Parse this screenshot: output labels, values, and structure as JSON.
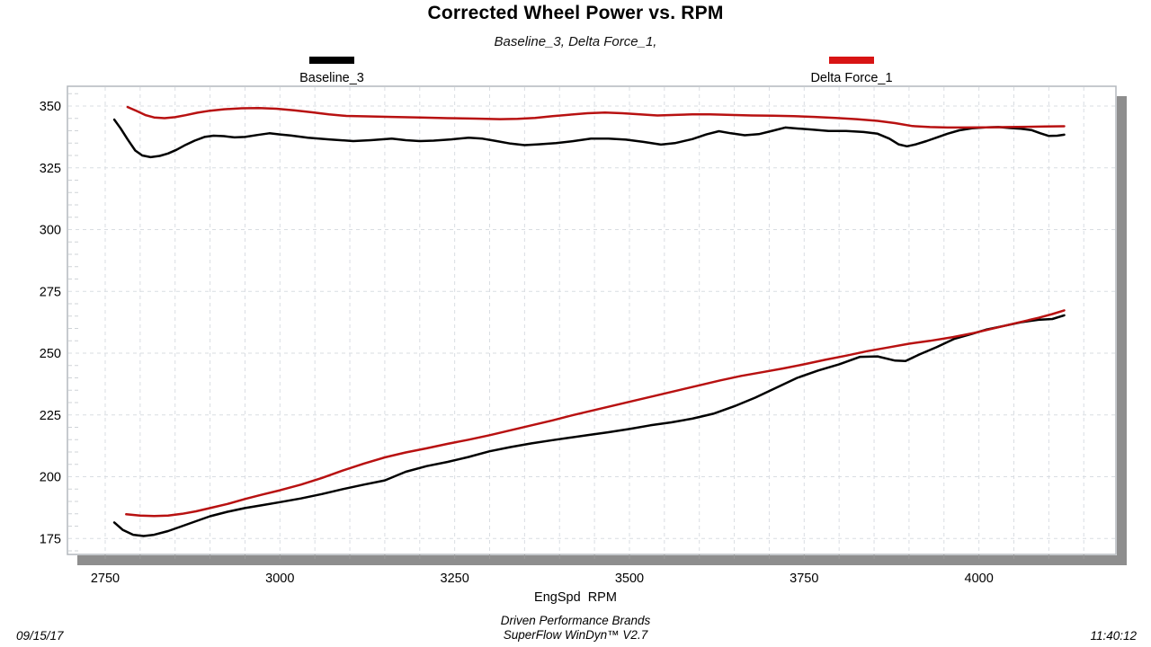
{
  "chart_data": {
    "type": "line",
    "title": "Corrected Wheel Power vs. RPM",
    "subtitle": "Baseline_3, Delta Force_1,",
    "xlabel": "EngSpd  RPM",
    "x_range": [
      2696,
      4196
    ],
    "x_ticks": [
      2750,
      3000,
      3250,
      3500,
      3750,
      4000
    ],
    "x_minor_step": 50,
    "y_range": [
      168,
      358
    ],
    "y_ticks": [
      175,
      200,
      225,
      250,
      275,
      300,
      325,
      350
    ],
    "y_minor_step": 5,
    "grid": true,
    "legend_position": "top",
    "legend": [
      {
        "label": "Baseline_3",
        "color": "#000000"
      },
      {
        "label": "Delta Force_1",
        "color": "#d81414"
      }
    ],
    "colors": {
      "baseline_3": "#000000",
      "delta_force_1": "#b81111",
      "grid": "#d9dde2",
      "frame": "#b4b9bd",
      "shadow": "#8e8e8e"
    },
    "series": [
      {
        "name": "Baseline_3 (upper curve)",
        "run": "Baseline_3",
        "color": "#000000",
        "points": [
          [
            2763,
            344.5
          ],
          [
            2772,
            341.0
          ],
          [
            2782,
            336.5
          ],
          [
            2793,
            332.0
          ],
          [
            2803,
            330.0
          ],
          [
            2815,
            329.3
          ],
          [
            2828,
            329.8
          ],
          [
            2840,
            330.8
          ],
          [
            2852,
            332.3
          ],
          [
            2865,
            334.3
          ],
          [
            2878,
            336.0
          ],
          [
            2892,
            337.5
          ],
          [
            2905,
            338.0
          ],
          [
            2920,
            337.8
          ],
          [
            2935,
            337.3
          ],
          [
            2950,
            337.5
          ],
          [
            2968,
            338.3
          ],
          [
            2985,
            339.0
          ],
          [
            3000,
            338.5
          ],
          [
            3015,
            338.1
          ],
          [
            3040,
            337.2
          ],
          [
            3070,
            336.5
          ],
          [
            3105,
            335.8
          ],
          [
            3130,
            336.2
          ],
          [
            3160,
            336.8
          ],
          [
            3180,
            336.2
          ],
          [
            3200,
            335.8
          ],
          [
            3220,
            336.0
          ],
          [
            3245,
            336.5
          ],
          [
            3270,
            337.2
          ],
          [
            3290,
            336.8
          ],
          [
            3310,
            335.8
          ],
          [
            3330,
            334.8
          ],
          [
            3350,
            334.2
          ],
          [
            3370,
            334.5
          ],
          [
            3395,
            335.0
          ],
          [
            3420,
            335.8
          ],
          [
            3445,
            336.8
          ],
          [
            3470,
            336.8
          ],
          [
            3495,
            336.4
          ],
          [
            3520,
            335.5
          ],
          [
            3545,
            334.4
          ],
          [
            3565,
            335.0
          ],
          [
            3590,
            336.6
          ],
          [
            3610,
            338.5
          ],
          [
            3628,
            339.8
          ],
          [
            3645,
            339.0
          ],
          [
            3665,
            338.2
          ],
          [
            3685,
            338.6
          ],
          [
            3705,
            340.0
          ],
          [
            3723,
            341.3
          ],
          [
            3740,
            340.9
          ],
          [
            3760,
            340.5
          ],
          [
            3785,
            339.9
          ],
          [
            3810,
            339.9
          ],
          [
            3835,
            339.5
          ],
          [
            3855,
            338.8
          ],
          [
            3872,
            336.8
          ],
          [
            3885,
            334.5
          ],
          [
            3897,
            333.7
          ],
          [
            3910,
            334.5
          ],
          [
            3925,
            335.8
          ],
          [
            3940,
            337.3
          ],
          [
            3955,
            338.8
          ],
          [
            3972,
            340.2
          ],
          [
            3990,
            341.0
          ],
          [
            4010,
            341.4
          ],
          [
            4028,
            341.5
          ],
          [
            4045,
            341.1
          ],
          [
            4060,
            340.8
          ],
          [
            4075,
            340.3
          ],
          [
            4088,
            339.0
          ],
          [
            4100,
            337.9
          ],
          [
            4112,
            338.0
          ],
          [
            4122,
            338.4
          ]
        ]
      },
      {
        "name": "Delta Force_1 (upper curve)",
        "run": "Delta Force_1",
        "color": "#b81111",
        "points": [
          [
            2782,
            349.6
          ],
          [
            2795,
            348.0
          ],
          [
            2808,
            346.3
          ],
          [
            2820,
            345.4
          ],
          [
            2835,
            345.1
          ],
          [
            2850,
            345.5
          ],
          [
            2865,
            346.3
          ],
          [
            2882,
            347.3
          ],
          [
            2900,
            348.1
          ],
          [
            2920,
            348.7
          ],
          [
            2945,
            349.1
          ],
          [
            2970,
            349.2
          ],
          [
            2995,
            348.9
          ],
          [
            3020,
            348.3
          ],
          [
            3045,
            347.5
          ],
          [
            3070,
            346.6
          ],
          [
            3095,
            346.0
          ],
          [
            3125,
            345.8
          ],
          [
            3160,
            345.6
          ],
          [
            3200,
            345.4
          ],
          [
            3240,
            345.1
          ],
          [
            3280,
            344.9
          ],
          [
            3315,
            344.7
          ],
          [
            3340,
            344.8
          ],
          [
            3365,
            345.2
          ],
          [
            3390,
            345.9
          ],
          [
            3415,
            346.5
          ],
          [
            3440,
            347.1
          ],
          [
            3465,
            347.4
          ],
          [
            3490,
            347.1
          ],
          [
            3515,
            346.6
          ],
          [
            3540,
            346.2
          ],
          [
            3565,
            346.4
          ],
          [
            3590,
            346.6
          ],
          [
            3615,
            346.6
          ],
          [
            3645,
            346.4
          ],
          [
            3675,
            346.2
          ],
          [
            3705,
            346.1
          ],
          [
            3735,
            345.9
          ],
          [
            3765,
            345.6
          ],
          [
            3795,
            345.2
          ],
          [
            3825,
            344.7
          ],
          [
            3855,
            344.0
          ],
          [
            3880,
            343.1
          ],
          [
            3905,
            341.9
          ],
          [
            3930,
            341.5
          ],
          [
            3955,
            341.3
          ],
          [
            3980,
            341.3
          ],
          [
            4010,
            341.4
          ],
          [
            4040,
            341.5
          ],
          [
            4070,
            341.6
          ],
          [
            4095,
            341.7
          ],
          [
            4122,
            341.8
          ]
        ]
      },
      {
        "name": "Baseline_3 (lower curve)",
        "run": "Baseline_3",
        "color": "#000000",
        "points": [
          [
            2763,
            181.5
          ],
          [
            2775,
            178.5
          ],
          [
            2790,
            176.5
          ],
          [
            2805,
            176.0
          ],
          [
            2820,
            176.5
          ],
          [
            2840,
            178.0
          ],
          [
            2860,
            180.0
          ],
          [
            2880,
            182.0
          ],
          [
            2900,
            184.0
          ],
          [
            2925,
            185.8
          ],
          [
            2950,
            187.3
          ],
          [
            2975,
            188.5
          ],
          [
            3000,
            189.7
          ],
          [
            3030,
            191.2
          ],
          [
            3060,
            193.0
          ],
          [
            3090,
            195.0
          ],
          [
            3120,
            196.8
          ],
          [
            3150,
            198.5
          ],
          [
            3180,
            202.0
          ],
          [
            3210,
            204.3
          ],
          [
            3240,
            206.0
          ],
          [
            3270,
            208.0
          ],
          [
            3300,
            210.3
          ],
          [
            3330,
            212.0
          ],
          [
            3360,
            213.5
          ],
          [
            3390,
            214.8
          ],
          [
            3415,
            215.8
          ],
          [
            3440,
            216.8
          ],
          [
            3470,
            218.0
          ],
          [
            3500,
            219.3
          ],
          [
            3530,
            220.8
          ],
          [
            3560,
            222.0
          ],
          [
            3590,
            223.5
          ],
          [
            3620,
            225.5
          ],
          [
            3650,
            228.5
          ],
          [
            3680,
            232.0
          ],
          [
            3710,
            236.0
          ],
          [
            3740,
            240.0
          ],
          [
            3770,
            243.0
          ],
          [
            3800,
            245.5
          ],
          [
            3830,
            248.5
          ],
          [
            3855,
            248.7
          ],
          [
            3880,
            247.0
          ],
          [
            3895,
            246.8
          ],
          [
            3915,
            249.5
          ],
          [
            3940,
            252.5
          ],
          [
            3965,
            255.8
          ],
          [
            3990,
            257.8
          ],
          [
            4010,
            259.5
          ],
          [
            4035,
            261.0
          ],
          [
            4060,
            262.5
          ],
          [
            4085,
            263.5
          ],
          [
            4105,
            263.8
          ],
          [
            4122,
            265.3
          ]
        ]
      },
      {
        "name": "Delta Force_1 (lower curve)",
        "run": "Delta Force_1",
        "color": "#b81111",
        "points": [
          [
            2780,
            184.8
          ],
          [
            2800,
            184.3
          ],
          [
            2820,
            184.1
          ],
          [
            2840,
            184.3
          ],
          [
            2860,
            185.0
          ],
          [
            2880,
            186.0
          ],
          [
            2900,
            187.3
          ],
          [
            2925,
            189.0
          ],
          [
            2950,
            191.0
          ],
          [
            2975,
            192.8
          ],
          [
            3000,
            194.5
          ],
          [
            3030,
            196.8
          ],
          [
            3060,
            199.5
          ],
          [
            3090,
            202.5
          ],
          [
            3120,
            205.3
          ],
          [
            3150,
            207.8
          ],
          [
            3180,
            209.8
          ],
          [
            3210,
            211.5
          ],
          [
            3240,
            213.3
          ],
          [
            3270,
            215.0
          ],
          [
            3300,
            216.8
          ],
          [
            3330,
            218.8
          ],
          [
            3360,
            220.8
          ],
          [
            3390,
            222.8
          ],
          [
            3420,
            225.0
          ],
          [
            3450,
            227.0
          ],
          [
            3480,
            229.0
          ],
          [
            3510,
            231.0
          ],
          [
            3540,
            233.0
          ],
          [
            3570,
            235.0
          ],
          [
            3600,
            237.0
          ],
          [
            3630,
            239.0
          ],
          [
            3660,
            240.8
          ],
          [
            3690,
            242.3
          ],
          [
            3720,
            243.8
          ],
          [
            3750,
            245.5
          ],
          [
            3780,
            247.3
          ],
          [
            3810,
            249.0
          ],
          [
            3840,
            250.8
          ],
          [
            3870,
            252.3
          ],
          [
            3900,
            253.8
          ],
          [
            3930,
            255.0
          ],
          [
            3963,
            256.5
          ],
          [
            3995,
            258.3
          ],
          [
            4025,
            260.3
          ],
          [
            4055,
            262.3
          ],
          [
            4085,
            264.3
          ],
          [
            4105,
            265.8
          ],
          [
            4122,
            267.3
          ]
        ]
      }
    ]
  },
  "footer": {
    "date": "09/15/17",
    "brand": "Driven Performance Brands",
    "app": "SuperFlow WinDyn™ V2.7",
    "time": "11:40:12"
  }
}
